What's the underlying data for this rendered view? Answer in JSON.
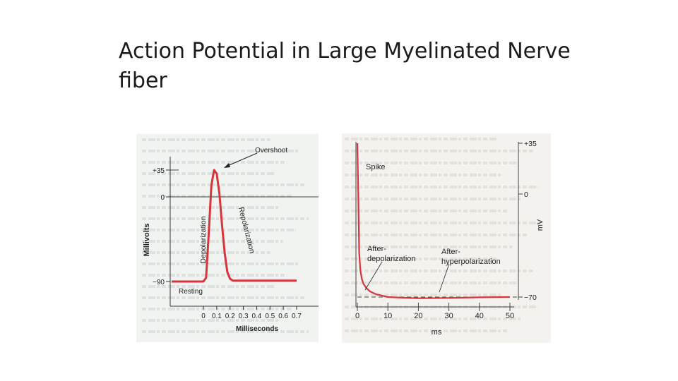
{
  "slide": {
    "title": "Action Potential in Large Myelinated Nerve fiber"
  },
  "chart_data": [
    {
      "type": "line",
      "title": "",
      "xlabel": "Milliseconds",
      "ylabel": "Millivolts",
      "xlim": [
        0,
        0.7
      ],
      "ylim": [
        -90,
        35
      ],
      "x_ticks": [
        "0",
        "0.1",
        "0.2",
        "0.3",
        "0.4",
        "0.5",
        "0.6",
        "0.7"
      ],
      "y_ticks": [
        {
          "value": 35,
          "label": "+35"
        },
        {
          "value": 0,
          "label": "0"
        },
        {
          "value": -90,
          "label": "−90"
        }
      ],
      "series": [
        {
          "color": "#d8343c",
          "x": [
            -0.3,
            0.0,
            0.02,
            0.04,
            0.06,
            0.08,
            0.1,
            0.12,
            0.14,
            0.16,
            0.18,
            0.2,
            0.22,
            0.24,
            0.26,
            0.3,
            0.4,
            0.5,
            0.7
          ],
          "y": [
            -90,
            -90,
            -86,
            -40,
            15,
            35,
            30,
            5,
            -30,
            -60,
            -80,
            -87,
            -89,
            -89,
            -89,
            -89,
            -89,
            -89,
            -89
          ]
        }
      ],
      "annotations": {
        "overshoot": "Overshoot",
        "depolarization": "Depolarization",
        "repolarization": "Repolarization",
        "resting": "Resting"
      }
    },
    {
      "type": "line",
      "title": "",
      "xlabel": "ms",
      "ylabel": "mV",
      "xlim": [
        0,
        50
      ],
      "ylim": [
        -70,
        35
      ],
      "x_ticks": [
        "0",
        "10",
        "20",
        "30",
        "40",
        "50"
      ],
      "y_ticks": [
        {
          "value": 35,
          "label": "+35"
        },
        {
          "value": 0,
          "label": "0"
        },
        {
          "value": -70,
          "label": "−70"
        }
      ],
      "series": [
        {
          "color": "#d8343c",
          "x": [
            0,
            0.3,
            0.6,
            1,
            1.5,
            2,
            3,
            4,
            6,
            8,
            10,
            15,
            20,
            30,
            40,
            50
          ],
          "y": [
            35,
            0,
            -40,
            -52,
            -58,
            -61,
            -64,
            -66,
            -68,
            -69,
            -70,
            -70.5,
            -70.8,
            -70.6,
            -70.2,
            -70
          ]
        }
      ],
      "annotations": {
        "spike": "Spike",
        "after_depolarization": "After-\ndepolarization",
        "after_hyperpolarization": "After-\nhyperpolarization"
      }
    }
  ]
}
